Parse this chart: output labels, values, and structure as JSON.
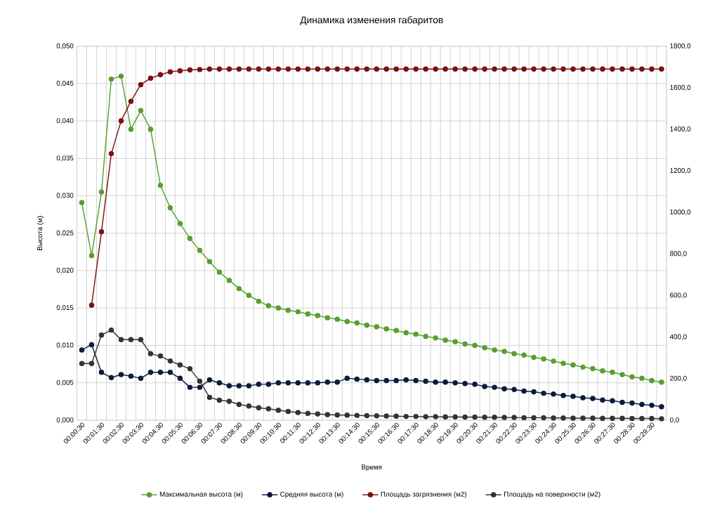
{
  "chart_data": {
    "type": "line",
    "title": "Динамика изменения габаритов",
    "xlabel": "Время",
    "ylabel": "Высота (м)",
    "categories": [
      "00:00:30",
      null,
      "00:01:30",
      null,
      "00:02:30",
      null,
      "00:03:30",
      null,
      "00:04:30",
      null,
      "00:05:30",
      null,
      "00:06:30",
      null,
      "00:07:30",
      null,
      "00:08:30",
      null,
      "00:09:30",
      null,
      "00:10:30",
      null,
      "00:11:30",
      null,
      "00:12:30",
      null,
      "00:13:30",
      null,
      "00:14:30",
      null,
      "00:15:30",
      null,
      "00:16:30",
      null,
      "00:17:30",
      null,
      "00:18:30",
      null,
      "00:19:30",
      null,
      "00:20:30",
      null,
      "00:21:30",
      null,
      "00:22:30",
      null,
      "00:23:30",
      null,
      "00:24:30",
      null,
      "00:25:30",
      null,
      "00:26:30",
      null,
      "00:27:30",
      null,
      "00:28:30",
      null,
      "00:29:30",
      null
    ],
    "series": [
      {
        "name": "Максимальная высота (м)",
        "color": "#5a9e2f",
        "values": [
          0.0291,
          0.022,
          0.0305,
          0.0456,
          0.046,
          0.0389,
          0.0414,
          0.0389,
          0.0314,
          0.0284,
          0.0263,
          0.0243,
          0.0227,
          0.0212,
          0.0198,
          0.0187,
          0.0176,
          0.0167,
          0.0159,
          0.0153,
          0.015,
          0.0147,
          0.0145,
          0.0142,
          0.014,
          0.0137,
          0.0135,
          0.0132,
          0.013,
          0.0127,
          0.0125,
          0.0122,
          0.012,
          0.0117,
          0.0115,
          0.0112,
          0.011,
          0.0107,
          0.0105,
          0.0102,
          0.01,
          0.0097,
          0.0094,
          0.0092,
          0.0089,
          0.0087,
          0.0084,
          0.0082,
          0.0079,
          0.0076,
          0.0074,
          0.0071,
          0.0069,
          0.0066,
          0.0064,
          0.0061,
          0.0058,
          0.0056,
          0.0053,
          0.0051
        ]
      },
      {
        "name": "Средняя высота (м)",
        "color": "#0c1a3d",
        "values": [
          0.0094,
          0.0101,
          0.0064,
          0.0057,
          0.0061,
          0.0059,
          0.0056,
          0.0064,
          0.0064,
          0.0064,
          0.0056,
          0.0044,
          0.0044,
          0.0054,
          0.005,
          0.0046,
          0.0046,
          0.0046,
          0.0048,
          0.0048,
          0.005,
          0.005,
          0.005,
          0.005,
          0.005,
          0.0051,
          0.0051,
          0.0056,
          0.0055,
          0.0054,
          0.0053,
          0.0053,
          0.0053,
          0.0054,
          0.0053,
          0.0052,
          0.0051,
          0.0051,
          0.005,
          0.0049,
          0.0048,
          0.0045,
          0.0044,
          0.0042,
          0.0041,
          0.0039,
          0.0038,
          0.0036,
          0.0035,
          0.0033,
          0.0032,
          0.003,
          0.0029,
          0.0027,
          0.0026,
          0.0024,
          0.0023,
          0.0021,
          0.002,
          0.0018
        ]
      },
      {
        "name": "Площадь загрязнения (м2)",
        "color": "#7b1010",
        "axis": "y2",
        "values": [
          null,
          554,
          907,
          1283,
          1441,
          1535,
          1615,
          1646,
          1663,
          1677,
          1682,
          1686,
          1688,
          1690,
          1690,
          1690,
          1690,
          1690,
          1690,
          1690,
          1690,
          1690,
          1690,
          1690,
          1690,
          1690,
          1690,
          1690,
          1690,
          1690,
          1690,
          1690,
          1690,
          1690,
          1690,
          1690,
          1690,
          1690,
          1690,
          1690,
          1690,
          1690,
          1690,
          1690,
          1690,
          1690,
          1690,
          1690,
          1690,
          1690,
          1690,
          1690,
          1690,
          1690,
          1690,
          1690,
          1690,
          1690,
          1690,
          1690
        ]
      },
      {
        "name": "Площадь на поверхности (м2)",
        "color": "#333333",
        "axis": "y2",
        "values": [
          273,
          273,
          410,
          434,
          388,
          388,
          388,
          320,
          309,
          285,
          266,
          248,
          188,
          110,
          96,
          91,
          76,
          68,
          60,
          55,
          48,
          42,
          37,
          33,
          30,
          27,
          25,
          24,
          23,
          22,
          21,
          20,
          19,
          18,
          18,
          17,
          17,
          16,
          16,
          15,
          15,
          14,
          14,
          13,
          13,
          12,
          12,
          12,
          11,
          11,
          10,
          10,
          10,
          9,
          9,
          9,
          8,
          8,
          8,
          7
        ]
      }
    ],
    "ylim": [
      0,
      0.05
    ],
    "yticks": [
      {
        "value": 0,
        "label": "0,000"
      },
      {
        "value": 0.005,
        "label": "0,005"
      },
      {
        "value": 0.01,
        "label": "0,010"
      },
      {
        "value": 0.015,
        "label": "0,015"
      },
      {
        "value": 0.02,
        "label": "0,020"
      },
      {
        "value": 0.025,
        "label": "0,025"
      },
      {
        "value": 0.03,
        "label": "0,030"
      },
      {
        "value": 0.035,
        "label": "0,035"
      },
      {
        "value": 0.04,
        "label": "0,040"
      },
      {
        "value": 0.045,
        "label": "0,045"
      },
      {
        "value": 0.05,
        "label": "0,050"
      }
    ],
    "y2lim": [
      0,
      1800
    ],
    "y2ticks": [
      {
        "value": 0,
        "label": "0,0"
      },
      {
        "value": 200,
        "label": "200,0"
      },
      {
        "value": 400,
        "label": "400,0"
      },
      {
        "value": 600,
        "label": "600,0"
      },
      {
        "value": 800,
        "label": "800,0"
      },
      {
        "value": 1000,
        "label": "1000,0"
      },
      {
        "value": 1200,
        "label": "1200,0"
      },
      {
        "value": 1400,
        "label": "1400,0"
      },
      {
        "value": 1600,
        "label": "1600,0"
      },
      {
        "value": 1800,
        "label": "1800,0"
      }
    ],
    "grid": true,
    "legend": "bottom",
    "marker": "circle",
    "line_style": "solid"
  }
}
